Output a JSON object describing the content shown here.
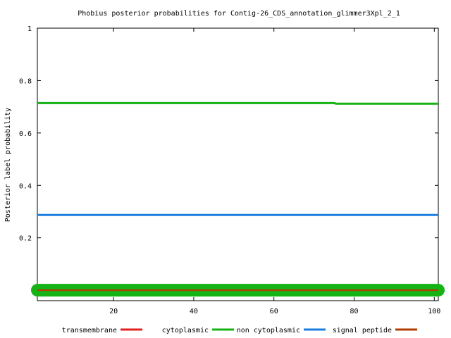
{
  "chart_data": {
    "type": "line",
    "title": "Phobius posterior probabilities for Contig-26_CDS_annotation_glimmer3Xpl_2_1",
    "xlabel": "",
    "ylabel": "Posterior label probability",
    "xlim": [
      1,
      101
    ],
    "ylim": [
      -0.04,
      1.0
    ],
    "xticks": [
      "20",
      "40",
      "60",
      "80",
      "100"
    ],
    "yticks": [
      "0.2",
      "0.4",
      "0.6",
      "0.8",
      "1"
    ],
    "legend_position": "bottom",
    "grid": false,
    "series": [
      {
        "name": "transmembrane",
        "color": "#e32020",
        "x": [
          1,
          101
        ],
        "y": [
          0.0,
          0.0
        ]
      },
      {
        "name": "cytoplasmic",
        "color": "#15b315",
        "x": [
          1,
          101
        ],
        "y": [
          0.0,
          0.0
        ]
      },
      {
        "name": "non cytoplasmic",
        "color": "#15b315",
        "x": [
          1,
          75,
          75.5,
          101
        ],
        "y": [
          0.714,
          0.714,
          0.712,
          0.712
        ]
      },
      {
        "name": "signal peptide",
        "color": "#1a7fe0",
        "x": [
          1,
          101
        ],
        "y": [
          0.287,
          0.287
        ]
      },
      {
        "name": "",
        "color": "#b03c00",
        "x": [
          1,
          101
        ],
        "y": [
          0.0,
          0.0
        ]
      }
    ]
  }
}
